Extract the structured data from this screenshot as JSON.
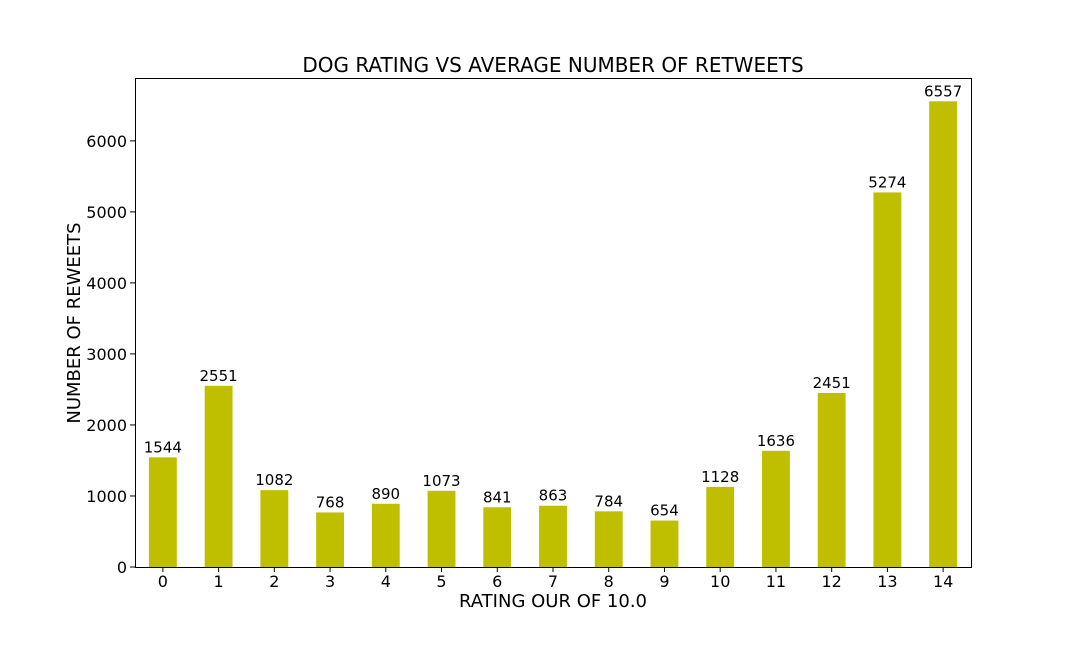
{
  "chart_data": {
    "type": "bar",
    "title": "DOG RATING VS AVERAGE NUMBER OF RETWEETS",
    "xlabel": "RATING OUR OF 10.0",
    "ylabel": "NUMBER OF REWEETS",
    "categories": [
      "0",
      "1",
      "2",
      "3",
      "4",
      "5",
      "6",
      "7",
      "8",
      "9",
      "10",
      "11",
      "12",
      "13",
      "14"
    ],
    "values": [
      1544,
      2551,
      1082,
      768,
      890,
      1073,
      841,
      863,
      784,
      654,
      1128,
      1636,
      2451,
      5274,
      6557
    ],
    "data_labels": [
      "1544",
      "2551",
      "1082",
      "768",
      "890",
      "1073",
      "841",
      "863",
      "784",
      "654",
      "1128",
      "1636",
      "2451",
      "5274",
      "6557"
    ],
    "ylim": [
      0,
      6885
    ],
    "yticks": [
      0,
      1000,
      2000,
      3000,
      4000,
      5000,
      6000
    ],
    "ytick_labels": [
      "0",
      "1000",
      "2000",
      "3000",
      "4000",
      "5000",
      "6000"
    ],
    "grid": false,
    "legend": "none",
    "bar_color": "#bfbf00"
  }
}
